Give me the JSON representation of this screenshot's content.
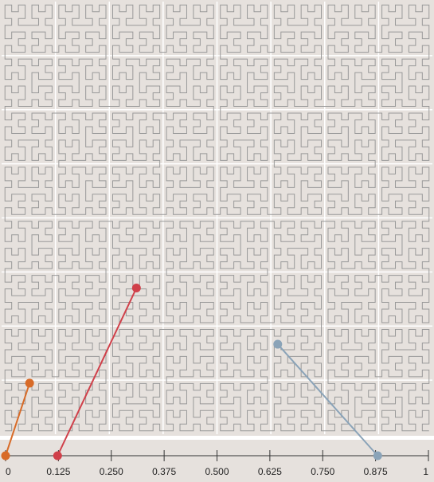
{
  "colors": {
    "panel_background": "#e6e1dd",
    "strip_background": "#e6e1dd",
    "grid_line": "#ffffff",
    "curve_stroke": "#999999",
    "axis": "#333333"
  },
  "hilbert": {
    "order": 6
  },
  "axis": {
    "domain": [
      0,
      1
    ],
    "ticks": [
      {
        "value": 0,
        "label": "0"
      },
      {
        "value": 0.125,
        "label": "0.125"
      },
      {
        "value": 0.25,
        "label": "0.250"
      },
      {
        "value": 0.375,
        "label": "0.375"
      },
      {
        "value": 0.5,
        "label": "0.500"
      },
      {
        "value": 0.625,
        "label": "0.625"
      },
      {
        "value": 0.75,
        "label": "0.750"
      },
      {
        "value": 0.875,
        "label": "0.875"
      },
      {
        "value": 1,
        "label": "1"
      }
    ]
  },
  "chart_data": {
    "type": "scatter",
    "title": "",
    "xlabel": "",
    "ylabel": "",
    "xlim": [
      0,
      1
    ],
    "ylim": [
      0,
      1
    ],
    "series": [
      {
        "t": 0.0,
        "x": 0.065,
        "y": 0.118,
        "color": "#d86b28"
      },
      {
        "t": 0.123,
        "x": 0.313,
        "y": 0.338,
        "color": "#d0404a"
      },
      {
        "t": 0.88,
        "x": 0.641,
        "y": 0.208,
        "color": "#8aa3b8"
      }
    ]
  }
}
